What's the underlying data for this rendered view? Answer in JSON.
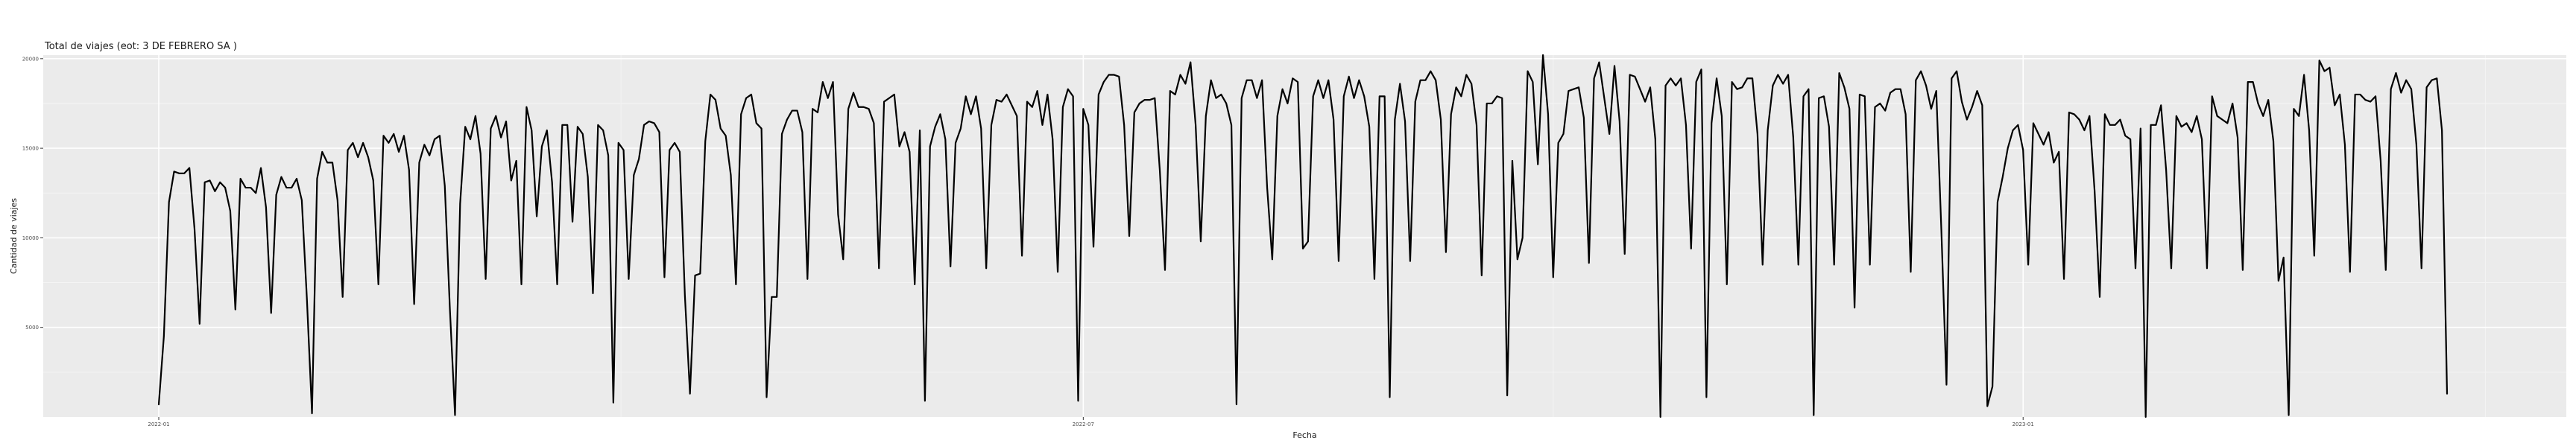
{
  "chart_data": {
    "type": "line",
    "title": "Total de viajes (eot: 3 DE FEBRERO SA )",
    "xlabel": "Fecha",
    "ylabel": "Cantidad de viajes",
    "x_start": "2022-01-01",
    "x_ticks": [
      {
        "date": "2022-01-01",
        "label": "2022-01"
      },
      {
        "date": "2022-07-01",
        "label": "2022-07"
      },
      {
        "date": "2023-01-01",
        "label": "2023-01"
      }
    ],
    "y_ticks": [
      5000,
      10000,
      15000,
      20000
    ],
    "ylim": [
      0,
      20200
    ],
    "grid": true,
    "series": [
      {
        "name": "",
        "color": "#000000",
        "values": [
          700,
          4500,
          12000,
          13700,
          13600,
          13600,
          13900,
          10500,
          5200,
          13100,
          13200,
          12600,
          13100,
          12800,
          11500,
          6000,
          13300,
          12800,
          12800,
          12500,
          13900,
          11700,
          5800,
          12400,
          13400,
          12800,
          12800,
          13300,
          12100,
          6600,
          200,
          13300,
          14800,
          14200,
          14200,
          12100,
          6700,
          14900,
          15300,
          14500,
          15300,
          14500,
          13200,
          7400,
          15700,
          15300,
          15800,
          14800,
          15700,
          13800,
          6300,
          14200,
          15200,
          14600,
          15500,
          15700,
          12900,
          6000,
          100,
          11900,
          16200,
          15500,
          16800,
          14700,
          7700,
          16100,
          16800,
          15600,
          16500,
          13200,
          14300,
          7400,
          17300,
          16000,
          11200,
          15100,
          16000,
          13100,
          7400,
          16300,
          16300,
          10900,
          16200,
          15800,
          13400,
          6900,
          16300,
          16000,
          14600,
          800,
          15300,
          14900,
          7700,
          13500,
          14400,
          16300,
          16500,
          16400,
          15900,
          7800,
          14900,
          15300,
          14800,
          6800,
          1300,
          7900,
          8000,
          15400,
          18000,
          17700,
          16100,
          15700,
          13500,
          7400,
          16900,
          17800,
          18000,
          16400,
          16100,
          1100,
          6700,
          6700,
          15800,
          16600,
          17100,
          17100,
          15900,
          7700,
          17200,
          17000,
          18700,
          17800,
          18700,
          11300,
          8800,
          17200,
          18100,
          17300,
          17300,
          17200,
          16400,
          8300,
          17600,
          17800,
          18000,
          15100,
          15900,
          14800,
          7400,
          16000,
          900,
          15100,
          16200,
          16900,
          15500,
          8400,
          15300,
          16100,
          17900,
          16900,
          17900,
          16100,
          8300,
          16300,
          17700,
          17600,
          18000,
          17400,
          16800,
          9000,
          17600,
          17300,
          18200,
          16300,
          18000,
          15500,
          8100,
          17300,
          18300,
          17900,
          900,
          17200,
          16300,
          9500,
          18000,
          18700,
          19100,
          19100,
          19000,
          16300,
          10100,
          17000,
          17500,
          17700,
          17700,
          17800,
          13700,
          8200,
          18200,
          18000,
          19100,
          18600,
          19800,
          16300,
          9800,
          16800,
          18800,
          17800,
          18000,
          17500,
          16300,
          700,
          17800,
          18800,
          18800,
          17800,
          18800,
          12800,
          8800,
          16800,
          18300,
          17500,
          18900,
          18700,
          9400,
          9800,
          17900,
          18800,
          17800,
          18800,
          16600,
          8700,
          17900,
          19000,
          17800,
          18800,
          17900,
          16200,
          7700,
          17900,
          17900,
          1100,
          16600,
          18600,
          16500,
          8700,
          17600,
          18800,
          18800,
          19300,
          18800,
          16600,
          9200,
          16900,
          18400,
          17900,
          19100,
          18600,
          16300,
          7900,
          17500,
          17500,
          17900,
          17800,
          1200,
          14300,
          8800,
          10000,
          19300,
          18700,
          14100,
          20200,
          16900,
          7800,
          15300,
          15800,
          18200,
          18300,
          18400,
          16700,
          8600,
          18900,
          19800,
          17800,
          15800,
          19600,
          16500,
          9100,
          19100,
          19000,
          18300,
          17600,
          18400,
          15500,
          0,
          18500,
          18900,
          18500,
          18900,
          16300,
          9400,
          18700,
          19400,
          1100,
          16400,
          18900,
          16800,
          7400,
          18700,
          18300,
          18400,
          18900,
          18900,
          15800,
          8500,
          16000,
          18500,
          19100,
          18600,
          19100,
          15600,
          8500,
          17900,
          18300,
          100,
          17800,
          17900,
          16200,
          8500,
          19200,
          18400,
          17200,
          6100,
          18000,
          17900,
          8500,
          17300,
          17500,
          17100,
          18100,
          18300,
          18300,
          16900,
          8100,
          18800,
          19300,
          18500,
          17200,
          18200,
          10400,
          1800,
          18900,
          19300,
          17600,
          16600,
          17300,
          18200,
          17400,
          600,
          1700,
          12000,
          13400,
          15000,
          16000,
          16300,
          14900,
          8500,
          16400,
          15800,
          15200,
          15900,
          14200,
          14800,
          7700,
          17000,
          16900,
          16600,
          16000,
          16800,
          12600,
          6700,
          16900,
          16300,
          16300,
          16600,
          15700,
          15500,
          8300,
          16100,
          0,
          16300,
          16300,
          17400,
          13800,
          8300,
          16800,
          16200,
          16400,
          15900,
          16800,
          15500,
          8300,
          17900,
          16800,
          16600,
          16400,
          17500,
          15600,
          8200,
          18700,
          18700,
          17500,
          16800,
          17700,
          15400,
          7600,
          8900,
          100,
          17200,
          16800,
          19100,
          16000,
          9000,
          19900,
          19300,
          19500,
          17400,
          18000,
          15200,
          8100,
          18000,
          18000,
          17700,
          17600,
          17900,
          14300,
          8200,
          18300,
          19200,
          18100,
          18800,
          18300,
          15200,
          8300,
          18400,
          18800,
          18900,
          16000,
          1300
        ]
      }
    ]
  }
}
